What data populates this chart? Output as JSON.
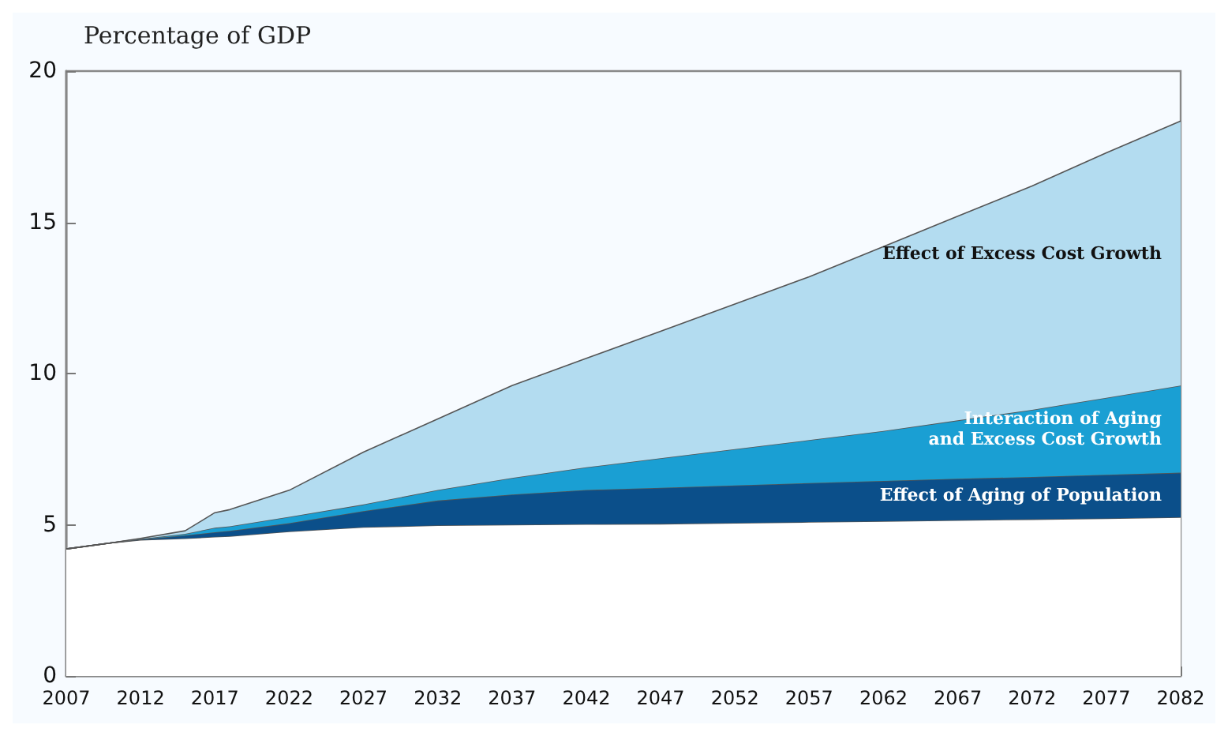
{
  "chart_data": {
    "type": "area",
    "stacked": true,
    "title": "Percentage of GDP",
    "x": [
      2007,
      2010,
      2012,
      2015,
      2017,
      2018,
      2022,
      2027,
      2032,
      2037,
      2042,
      2047,
      2052,
      2057,
      2062,
      2067,
      2072,
      2077,
      2082
    ],
    "series": [
      {
        "color": "#ffffff",
        "values": [
          4.2,
          4.4,
          4.5,
          4.55,
          4.6,
          4.62,
          4.78,
          4.92,
          4.98,
          5.0,
          5.02,
          5.03,
          5.06,
          5.09,
          5.12,
          5.15,
          5.18,
          5.21,
          5.25
        ]
      },
      {
        "name": "Effect of Aging of Population",
        "color": "#0b4f8a",
        "values": [
          0,
          0,
          0.02,
          0.1,
          0.15,
          0.18,
          0.27,
          0.53,
          0.82,
          1.0,
          1.13,
          1.19,
          1.24,
          1.29,
          1.33,
          1.37,
          1.4,
          1.44,
          1.47
        ]
      },
      {
        "name": "Interaction of Aging\nand Excess Cost Growth",
        "color": "#1a9fd3",
        "values": [
          0,
          0,
          0.01,
          0.05,
          0.15,
          0.15,
          0.21,
          0.22,
          0.35,
          0.55,
          0.75,
          0.98,
          1.2,
          1.42,
          1.65,
          1.93,
          2.22,
          2.55,
          2.88
        ]
      },
      {
        "name": "Effect of Excess Cost Growth",
        "color": "#b3dcf0",
        "values": [
          0,
          0,
          0.02,
          0.1,
          0.5,
          0.55,
          0.88,
          1.73,
          2.35,
          3.05,
          3.6,
          4.2,
          4.8,
          5.4,
          6.1,
          6.75,
          7.4,
          8.1,
          8.75
        ]
      }
    ],
    "xlim": [
      2007,
      2082
    ],
    "xticks": [
      2007,
      2012,
      2017,
      2022,
      2027,
      2032,
      2037,
      2042,
      2047,
      2052,
      2057,
      2062,
      2067,
      2072,
      2077,
      2082
    ],
    "ylim": [
      0,
      20
    ],
    "yticks": [
      0,
      5,
      10,
      15,
      20
    ],
    "grid": false,
    "legend": false
  }
}
